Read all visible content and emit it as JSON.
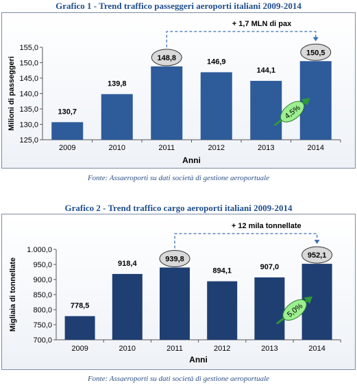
{
  "chart_data": [
    {
      "type": "bar",
      "title": "Grafico 1 - Trend traffico passeggeri aeroporti italiani 2009-2014",
      "xlabel": "Anni",
      "ylabel": "Milioni di passeggeri",
      "categories": [
        "2009",
        "2010",
        "2011",
        "2012",
        "2013",
        "2014"
      ],
      "values": [
        130.7,
        139.8,
        148.8,
        146.9,
        144.1,
        150.5
      ],
      "value_labels": [
        "130,7",
        "139,8",
        "148,8",
        "146,9",
        "144,1",
        "150,5"
      ],
      "highlighted": [
        "2011",
        "2014"
      ],
      "ylim": [
        125,
        155
      ],
      "yticks": [
        125,
        130,
        135,
        140,
        145,
        150,
        155
      ],
      "ytick_labels": [
        "125,0",
        "130,0",
        "135,0",
        "140,0",
        "145,0",
        "150,0",
        "155,0"
      ],
      "annotation": "+ 1,7 MLN di pax",
      "growth_label": "4,5%",
      "grid": false,
      "bar_color": "#2e5b9a",
      "source": "Fonte: Assaeroporti su dati società di gestione aeroportuale"
    },
    {
      "type": "bar",
      "title": "Grafico 2 - Trend traffico cargo aeroporti italiani 2009-2014",
      "xlabel": "Anni",
      "ylabel": "Migliaia di tonnellate",
      "categories": [
        "2009",
        "2010",
        "2011",
        "2012",
        "2013",
        "2014"
      ],
      "values": [
        778.5,
        918.4,
        939.8,
        894.1,
        907.0,
        952.1
      ],
      "value_labels": [
        "778,5",
        "918,4",
        "939,8",
        "894,1",
        "907,0",
        "952,1"
      ],
      "highlighted": [
        "2011",
        "2014"
      ],
      "ylim": [
        700,
        1000
      ],
      "yticks": [
        700,
        750,
        800,
        850,
        900,
        950,
        1000
      ],
      "ytick_labels": [
        "700,0",
        "750,0",
        "800,0",
        "850,0",
        "900,0",
        "950,0",
        "1.000,0"
      ],
      "annotation": "+ 12 mila tonnellate",
      "growth_label": "5,0%",
      "grid": false,
      "bar_color": "#1f3f73",
      "source": "Fonte: Assaeroporti su dati società di gestione aeroportuale"
    }
  ]
}
